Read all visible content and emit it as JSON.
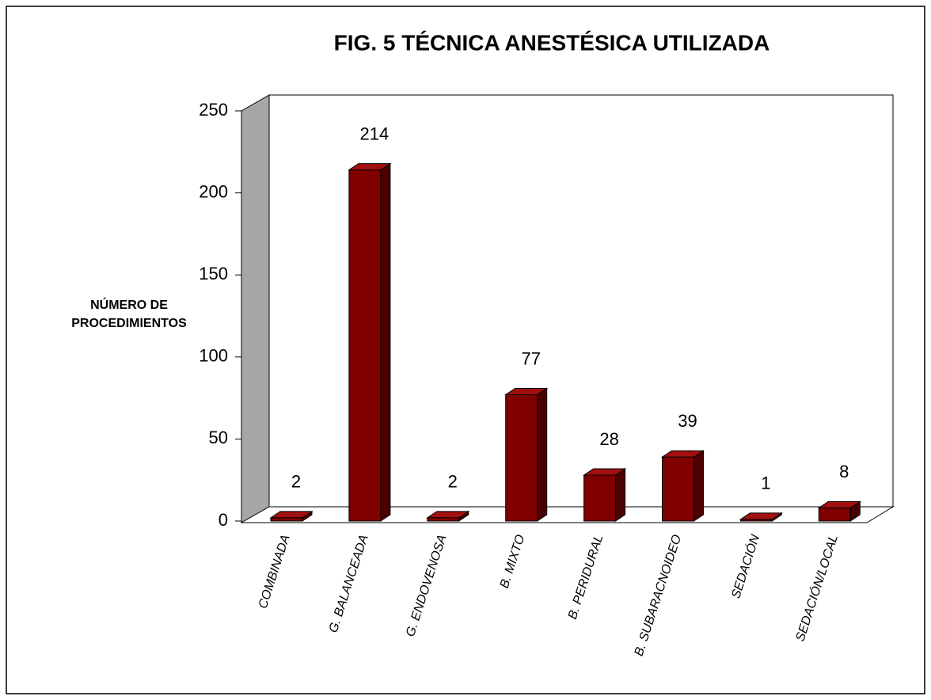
{
  "chart_data": {
    "type": "bar3d",
    "title": "FIG. 5  TÉCNICA   ANESTÉSICA   UTILIZADA",
    "ylabel": [
      "NÚMERO DE",
      "PROCEDIMIENTOS"
    ],
    "categories": [
      "COMBINADA",
      "G. BALANCEADA",
      "G. ENDOVENOSA",
      "B. MIXTO",
      "B. PERIDURAL",
      "B. SUBARACNOIDEO",
      "SEDACIÓN",
      "SEDACIÓN/LOCAL"
    ],
    "values": [
      2,
      214,
      2,
      77,
      28,
      39,
      1,
      8
    ],
    "color": "#800000",
    "ylim": [
      0,
      250
    ],
    "yticks": [
      0,
      50,
      100,
      150,
      200,
      250
    ]
  }
}
